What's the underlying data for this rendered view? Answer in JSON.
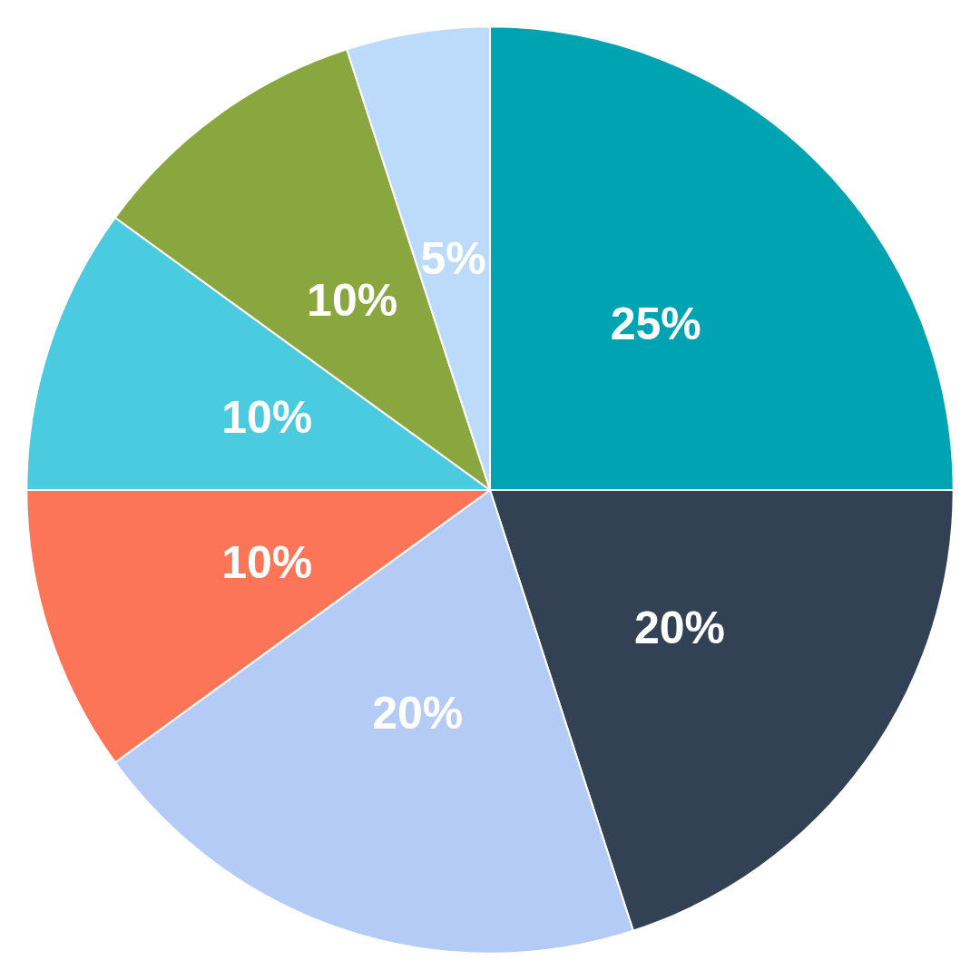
{
  "chart_data": {
    "type": "pie",
    "categories": [
      null,
      null,
      null,
      null,
      null,
      null,
      null
    ],
    "values": [
      25,
      20,
      20,
      10,
      10,
      10,
      5
    ],
    "value_labels": [
      "25%",
      "20%",
      "20%",
      "10%",
      "10%",
      "10%",
      "5%"
    ],
    "colors": [
      "#00a3b1",
      "#334155",
      "#b4cbf5",
      "#fc7558",
      "#4acbe0",
      "#8aa63f",
      "#bcdaf9"
    ]
  }
}
